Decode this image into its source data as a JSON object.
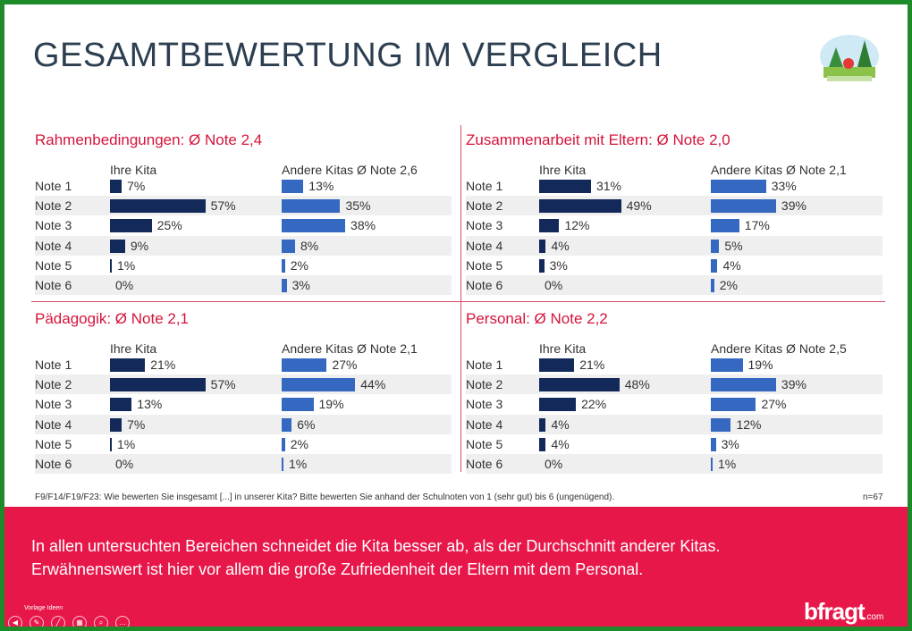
{
  "slide": {
    "title": "GESAMTBEWERTUNG IM VERGLEICH",
    "footnote": "F9/F14/F19/F23: Wie bewerten Sie insgesamt [...] in unserer Kita? Bitte bewerten Sie anhand der Schulnoten von 1 (sehr gut)  bis 6 (ungenügend).",
    "n_label": "n=67",
    "conclusion": [
      "In allen untersuchten Bereichen schneidet die Kita besser ab, als der Durchschnitt anderer Kitas.",
      "Erwähnenswert ist hier vor allem die große Zufriedenheit der Eltern mit dem Personal."
    ],
    "brand": "bfragt",
    "brand_suffix": ".com",
    "vorlage_label": "Vorlage Ideen"
  },
  "chart_data": [
    {
      "type": "bar",
      "orientation": "horizontal",
      "title": "Rahmenbedingungen: Ø Note 2,4",
      "categories": [
        "Note 1",
        "Note 2",
        "Note 3",
        "Note 4",
        "Note 5",
        "Note 6"
      ],
      "series": [
        {
          "name": "Ihre Kita",
          "values": [
            7,
            57,
            25,
            9,
            1,
            0
          ],
          "color": "#13295a"
        },
        {
          "name": "Andere Kitas  Ø Note 2,6",
          "values": [
            13,
            35,
            38,
            8,
            2,
            3
          ],
          "color": "#3568c0"
        }
      ],
      "unit": "%"
    },
    {
      "type": "bar",
      "orientation": "horizontal",
      "title": "Zusammenarbeit mit Eltern: Ø Note 2,0",
      "categories": [
        "Note 1",
        "Note 2",
        "Note 3",
        "Note 4",
        "Note 5",
        "Note 6"
      ],
      "series": [
        {
          "name": "Ihre Kita",
          "values": [
            31,
            49,
            12,
            4,
            3,
            0
          ],
          "color": "#13295a"
        },
        {
          "name": "Andere Kitas Ø Note 2,1",
          "values": [
            33,
            39,
            17,
            5,
            4,
            2
          ],
          "color": "#3568c0"
        }
      ],
      "unit": "%"
    },
    {
      "type": "bar",
      "orientation": "horizontal",
      "title": "Pädagogik: Ø Note 2,1",
      "categories": [
        "Note 1",
        "Note 2",
        "Note 3",
        "Note 4",
        "Note 5",
        "Note 6"
      ],
      "series": [
        {
          "name": "Ihre Kita",
          "values": [
            21,
            57,
            13,
            7,
            1,
            0
          ],
          "color": "#13295a"
        },
        {
          "name": "Andere Kitas Ø Note 2,1",
          "values": [
            27,
            44,
            19,
            6,
            2,
            1
          ],
          "color": "#3568c0"
        }
      ],
      "unit": "%"
    },
    {
      "type": "bar",
      "orientation": "horizontal",
      "title": "Personal: Ø Note 2,2",
      "categories": [
        "Note 1",
        "Note 2",
        "Note 3",
        "Note 4",
        "Note 5",
        "Note 6"
      ],
      "series": [
        {
          "name": "Ihre Kita",
          "values": [
            21,
            48,
            22,
            4,
            4,
            0
          ],
          "color": "#13295a"
        },
        {
          "name": "Andere Kitas Ø Note 2,5",
          "values": [
            19,
            39,
            27,
            12,
            3,
            1
          ],
          "color": "#3568c0"
        }
      ],
      "unit": "%"
    }
  ]
}
